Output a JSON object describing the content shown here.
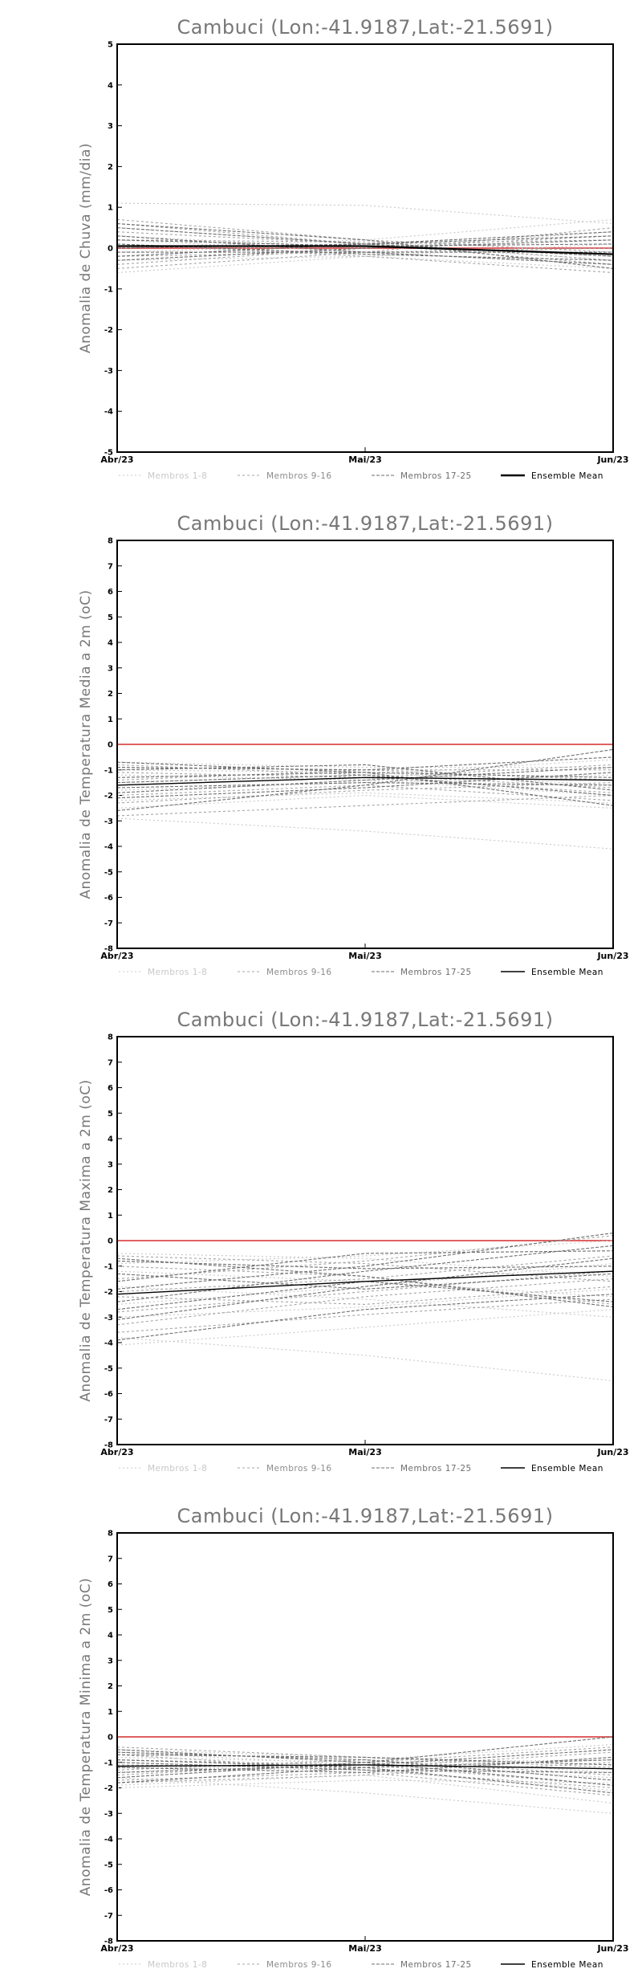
{
  "page": {
    "background": "#ffffff"
  },
  "colors": {
    "group1": "#c8c8c8",
    "group2": "#a4a4a4",
    "group3": "#6e6e6e",
    "mean": "#000000",
    "zero_line": "#e06060",
    "axis": "#000000",
    "text": "#777777"
  },
  "legend_labels": [
    "Membros 1-8",
    "Membros 9-16",
    "Membros 17-25",
    "Ensemble Mean"
  ],
  "x_ticks": [
    "Abr/23",
    "Mai/23",
    "Jun/23"
  ],
  "chart_data": [
    {
      "type": "line",
      "title": "Cambuci (Lon:-41.9187,Lat:-21.5691)",
      "ylabel": "Anomalia de Chuva (mm/dia)",
      "categories": [
        "Abr/23",
        "Mai/23",
        "Jun/23"
      ],
      "ylim": [
        -5,
        5
      ],
      "yticks": [
        "-5",
        "-4",
        "-3",
        "-2",
        "-1",
        "0",
        "1",
        "2",
        "3",
        "4",
        "5"
      ],
      "zero_line": 0,
      "series": [
        {
          "group": 1,
          "values": [
            1.1,
            1.05,
            0.6
          ]
        },
        {
          "group": 1,
          "values": [
            0.5,
            0.1,
            -0.2
          ]
        },
        {
          "group": 1,
          "values": [
            -0.6,
            -0.2,
            0.1
          ]
        },
        {
          "group": 1,
          "values": [
            0.2,
            -0.1,
            -0.4
          ]
        },
        {
          "group": 1,
          "values": [
            -0.1,
            0.1,
            -0.3
          ]
        },
        {
          "group": 1,
          "values": [
            0.3,
            0.0,
            0.4
          ]
        },
        {
          "group": 1,
          "values": [
            -0.3,
            -0.2,
            -0.5
          ]
        },
        {
          "group": 1,
          "values": [
            0.0,
            0.2,
            0.7
          ]
        },
        {
          "group": 2,
          "values": [
            0.7,
            0.2,
            -0.1
          ]
        },
        {
          "group": 2,
          "values": [
            -0.4,
            0.0,
            0.3
          ]
        },
        {
          "group": 2,
          "values": [
            0.4,
            0.1,
            -0.4
          ]
        },
        {
          "group": 2,
          "values": [
            -0.2,
            -0.1,
            0.5
          ]
        },
        {
          "group": 2,
          "values": [
            0.1,
            -0.2,
            -0.6
          ]
        },
        {
          "group": 2,
          "values": [
            0.6,
            0.1,
            0.2
          ]
        },
        {
          "group": 2,
          "values": [
            -0.5,
            -0.1,
            0.0
          ]
        },
        {
          "group": 2,
          "values": [
            0.2,
            0.15,
            -0.3
          ]
        },
        {
          "group": 3,
          "values": [
            0.5,
            0.1,
            -0.2
          ]
        },
        {
          "group": 3,
          "values": [
            -0.3,
            0.0,
            0.2
          ]
        },
        {
          "group": 3,
          "values": [
            0.3,
            -0.1,
            -0.4
          ]
        },
        {
          "group": 3,
          "values": [
            0.0,
            0.1,
            0.4
          ]
        },
        {
          "group": 3,
          "values": [
            0.6,
            0.2,
            -0.5
          ]
        },
        {
          "group": 3,
          "values": [
            -0.1,
            -0.1,
            -0.1
          ]
        },
        {
          "group": 3,
          "values": [
            0.2,
            0.05,
            0.1
          ]
        },
        {
          "group": 3,
          "values": [
            0.1,
            -0.15,
            -0.3
          ]
        },
        {
          "group": 3,
          "values": [
            -0.2,
            0.1,
            0.3
          ]
        }
      ],
      "mean": [
        0.05,
        0.05,
        -0.15
      ]
    },
    {
      "type": "line",
      "title": "Cambuci (Lon:-41.9187,Lat:-21.5691)",
      "ylabel": "Anomalia de Temperatura Media a 2m (oC)",
      "categories": [
        "Abr/23",
        "Mai/23",
        "Jun/23"
      ],
      "ylim": [
        -8,
        8
      ],
      "yticks": [
        "-8",
        "-7",
        "-6",
        "-5",
        "-4",
        "-3",
        "-2",
        "-1",
        "0",
        "1",
        "2",
        "3",
        "4",
        "5",
        "6",
        "7",
        "8"
      ],
      "zero_line": 0,
      "series": [
        {
          "group": 1,
          "values": [
            -2.9,
            -3.4,
            -4.1
          ]
        },
        {
          "group": 1,
          "values": [
            -1.0,
            -1.1,
            -1.6
          ]
        },
        {
          "group": 1,
          "values": [
            -2.2,
            -1.9,
            -2.3
          ]
        },
        {
          "group": 1,
          "values": [
            -0.7,
            -0.9,
            -0.9
          ]
        },
        {
          "group": 1,
          "values": [
            -1.8,
            -1.5,
            -1.2
          ]
        },
        {
          "group": 1,
          "values": [
            -1.2,
            -1.4,
            -2.0
          ]
        },
        {
          "group": 1,
          "values": [
            -2.5,
            -2.0,
            -2.5
          ]
        },
        {
          "group": 1,
          "values": [
            -1.5,
            -1.2,
            -0.6
          ]
        },
        {
          "group": 2,
          "values": [
            -2.8,
            -2.4,
            -2.0
          ]
        },
        {
          "group": 2,
          "values": [
            -0.9,
            -1.0,
            -1.4
          ]
        },
        {
          "group": 2,
          "values": [
            -1.6,
            -1.3,
            -0.8
          ]
        },
        {
          "group": 2,
          "values": [
            -2.0,
            -1.6,
            -2.2
          ]
        },
        {
          "group": 2,
          "values": [
            -1.1,
            -1.3,
            -1.9
          ]
        },
        {
          "group": 2,
          "values": [
            -1.4,
            -1.0,
            -1.0
          ]
        },
        {
          "group": 2,
          "values": [
            -2.3,
            -1.8,
            -1.5
          ]
        },
        {
          "group": 2,
          "values": [
            -0.8,
            -1.2,
            -1.7
          ]
        },
        {
          "group": 3,
          "values": [
            -2.6,
            -1.6,
            -0.2
          ]
        },
        {
          "group": 3,
          "values": [
            -1.3,
            -1.1,
            -1.3
          ]
        },
        {
          "group": 3,
          "values": [
            -0.7,
            -1.1,
            -2.4
          ]
        },
        {
          "group": 3,
          "values": [
            -1.9,
            -1.4,
            -0.9
          ]
        },
        {
          "group": 3,
          "values": [
            -1.0,
            -0.8,
            -1.8
          ]
        },
        {
          "group": 3,
          "values": [
            -2.1,
            -1.7,
            -1.1
          ]
        },
        {
          "group": 3,
          "values": [
            -1.5,
            -1.2,
            -2.0
          ]
        },
        {
          "group": 3,
          "values": [
            -0.9,
            -1.0,
            -0.5
          ]
        },
        {
          "group": 3,
          "values": [
            -1.7,
            -1.5,
            -1.6
          ]
        }
      ],
      "mean": [
        -1.6,
        -1.3,
        -1.4
      ]
    },
    {
      "type": "line",
      "title": "Cambuci (Lon:-41.9187,Lat:-21.5691)",
      "ylabel": "Anomalia de Temperatura Maxima a 2m (oC)",
      "categories": [
        "Abr/23",
        "Mai/23",
        "Jun/23"
      ],
      "ylim": [
        -8,
        8
      ],
      "yticks": [
        "-8",
        "-7",
        "-6",
        "-5",
        "-4",
        "-3",
        "-2",
        "-1",
        "0",
        "1",
        "2",
        "3",
        "4",
        "5",
        "6",
        "7",
        "8"
      ],
      "zero_line": 0,
      "series": [
        {
          "group": 1,
          "values": [
            -3.8,
            -4.5,
            -5.5
          ]
        },
        {
          "group": 1,
          "values": [
            -4.1,
            -3.4,
            -2.7
          ]
        },
        {
          "group": 1,
          "values": [
            -1.2,
            -1.6,
            -2.2
          ]
        },
        {
          "group": 1,
          "values": [
            -0.5,
            -0.7,
            -1.4
          ]
        },
        {
          "group": 1,
          "values": [
            -2.5,
            -1.8,
            -0.9
          ]
        },
        {
          "group": 1,
          "values": [
            -1.8,
            -2.3,
            -3.0
          ]
        },
        {
          "group": 1,
          "values": [
            -3.0,
            -2.6,
            -1.9
          ]
        },
        {
          "group": 1,
          "values": [
            -0.9,
            -0.6,
            0.0
          ]
        },
        {
          "group": 2,
          "values": [
            -2.0,
            -1.5,
            -0.6
          ]
        },
        {
          "group": 2,
          "values": [
            -3.6,
            -2.9,
            -2.3
          ]
        },
        {
          "group": 2,
          "values": [
            -0.6,
            -0.9,
            -1.6
          ]
        },
        {
          "group": 2,
          "values": [
            -1.5,
            -0.8,
            0.2
          ]
        },
        {
          "group": 2,
          "values": [
            -2.8,
            -2.0,
            -1.2
          ]
        },
        {
          "group": 2,
          "values": [
            -1.0,
            -1.4,
            -2.5
          ]
        },
        {
          "group": 2,
          "values": [
            -2.2,
            -2.5,
            -1.8
          ]
        },
        {
          "group": 2,
          "values": [
            -3.3,
            -2.2,
            -1.5
          ]
        },
        {
          "group": 3,
          "values": [
            -1.9,
            -1.0,
            0.3
          ]
        },
        {
          "group": 3,
          "values": [
            -3.1,
            -1.8,
            -0.7
          ]
        },
        {
          "group": 3,
          "values": [
            -0.7,
            -1.4,
            -2.6
          ]
        },
        {
          "group": 3,
          "values": [
            -2.4,
            -1.2,
            -0.2
          ]
        },
        {
          "group": 3,
          "values": [
            -1.3,
            -1.9,
            -1.3
          ]
        },
        {
          "group": 3,
          "values": [
            -3.9,
            -2.7,
            -2.1
          ]
        },
        {
          "group": 3,
          "values": [
            -1.6,
            -0.5,
            -0.4
          ]
        },
        {
          "group": 3,
          "values": [
            -2.7,
            -1.6,
            -2.4
          ]
        },
        {
          "group": 3,
          "values": [
            -0.8,
            -1.1,
            -1.0
          ]
        }
      ],
      "mean": [
        -2.1,
        -1.6,
        -1.2
      ]
    },
    {
      "type": "line",
      "title": "Cambuci (Lon:-41.9187,Lat:-21.5691)",
      "ylabel": "Anomalia de Temperatura Minima a 2m (oC)",
      "categories": [
        "Abr/23",
        "Mai/23",
        "Jun/23"
      ],
      "ylim": [
        -8,
        8
      ],
      "yticks": [
        "-8",
        "-7",
        "-6",
        "-5",
        "-4",
        "-3",
        "-2",
        "-1",
        "0",
        "1",
        "2",
        "3",
        "4",
        "5",
        "6",
        "7",
        "8"
      ],
      "zero_line": 0,
      "series": [
        {
          "group": 1,
          "values": [
            -1.6,
            -2.2,
            -3.0
          ]
        },
        {
          "group": 1,
          "values": [
            -0.5,
            -0.8,
            -1.4
          ]
        },
        {
          "group": 1,
          "values": [
            -1.9,
            -1.5,
            -2.6
          ]
        },
        {
          "group": 1,
          "values": [
            -0.8,
            -1.0,
            -0.9
          ]
        },
        {
          "group": 1,
          "values": [
            -1.2,
            -1.3,
            -2.1
          ]
        },
        {
          "group": 1,
          "values": [
            -1.4,
            -0.9,
            -0.3
          ]
        },
        {
          "group": 1,
          "values": [
            -2.0,
            -1.7,
            -1.8
          ]
        },
        {
          "group": 1,
          "values": [
            -0.6,
            -1.1,
            -1.6
          ]
        },
        {
          "group": 2,
          "values": [
            -1.7,
            -1.4,
            -2.3
          ]
        },
        {
          "group": 2,
          "values": [
            -0.4,
            -0.8,
            -1.2
          ]
        },
        {
          "group": 2,
          "values": [
            -1.1,
            -1.2,
            -0.6
          ]
        },
        {
          "group": 2,
          "values": [
            -1.8,
            -1.5,
            -1.0
          ]
        },
        {
          "group": 2,
          "values": [
            -0.9,
            -1.1,
            -1.9
          ]
        },
        {
          "group": 2,
          "values": [
            -1.5,
            -1.0,
            -0.4
          ]
        },
        {
          "group": 2,
          "values": [
            -0.7,
            -1.3,
            -2.0
          ]
        },
        {
          "group": 2,
          "values": [
            -1.3,
            -0.9,
            -1.5
          ]
        },
        {
          "group": 3,
          "values": [
            -1.6,
            -1.0,
            0.0
          ]
        },
        {
          "group": 3,
          "values": [
            -0.6,
            -0.9,
            -1.7
          ]
        },
        {
          "group": 3,
          "values": [
            -1.2,
            -1.4,
            -0.8
          ]
        },
        {
          "group": 3,
          "values": [
            -0.9,
            -1.2,
            -2.2
          ]
        },
        {
          "group": 3,
          "values": [
            -1.4,
            -1.1,
            -0.5
          ]
        },
        {
          "group": 3,
          "values": [
            -0.7,
            -0.8,
            -1.1
          ]
        },
        {
          "group": 3,
          "values": [
            -1.0,
            -1.3,
            -1.4
          ]
        },
        {
          "group": 3,
          "values": [
            -1.8,
            -1.2,
            -0.9
          ]
        },
        {
          "group": 3,
          "values": [
            -0.5,
            -1.0,
            -1.9
          ]
        }
      ],
      "mean": [
        -1.15,
        -1.1,
        -1.25
      ]
    }
  ]
}
